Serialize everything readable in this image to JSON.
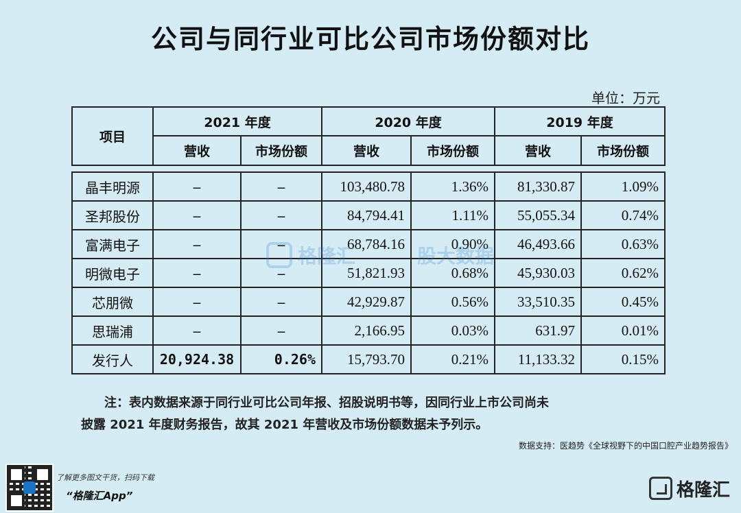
{
  "title": "公司与同行业可比公司市场份额对比",
  "unit": "单位：万元",
  "table": {
    "col_item": "项目",
    "years": [
      "2021 年度",
      "2020 年度",
      "2019 年度"
    ],
    "sub_revenue": "营收",
    "sub_share": "市场份额",
    "rows": [
      {
        "name": "晶丰明源",
        "r2021": "–",
        "s2021": "–",
        "r2020": "103,480.78",
        "s2020": "1.36%",
        "r2019": "81,330.87",
        "s2019": "1.09%"
      },
      {
        "name": "圣邦股份",
        "r2021": "–",
        "s2021": "–",
        "r2020": "84,794.41",
        "s2020": "1.11%",
        "r2019": "55,055.34",
        "s2019": "0.74%"
      },
      {
        "name": "富满电子",
        "r2021": "–",
        "s2021": "–",
        "r2020": "68,784.16",
        "s2020": "0.90%",
        "r2019": "46,493.66",
        "s2019": "0.63%"
      },
      {
        "name": "明微电子",
        "r2021": "–",
        "s2021": "–",
        "r2020": "51,821.93",
        "s2020": "0.68%",
        "r2019": "45,930.03",
        "s2019": "0.62%"
      },
      {
        "name": "芯朋微",
        "r2021": "–",
        "s2021": "–",
        "r2020": "42,929.87",
        "s2020": "0.56%",
        "r2019": "33,510.35",
        "s2019": "0.45%"
      },
      {
        "name": "思瑞浦",
        "r2021": "–",
        "s2021": "–",
        "r2020": "2,166.95",
        "s2020": "0.03%",
        "r2019": "631.97",
        "s2019": "0.01%"
      },
      {
        "name": "发行人",
        "r2021": "20,924.38",
        "s2021": "0.26%",
        "r2020": "15,793.70",
        "s2020": "0.21%",
        "r2019": "11,133.32",
        "s2019": "0.15%"
      }
    ]
  },
  "note_line1": "注：表内数据来源于同行业可比公司年报、招股说明书等，因同行业上市公司尚未",
  "note_line2": "披露 2021 年度财务报告，故其 2021 年营收及市场份额数据未予列示。",
  "source": "数据支持：医趋势《全球视野下的中国口腔产业趋势报告》",
  "footer": {
    "small": "了解更多图文干货，扫码下载",
    "app": "“格隆汇App”",
    "brand": "格隆汇"
  },
  "watermark": {
    "left": "格隆汇",
    "right": "股大数据"
  }
}
